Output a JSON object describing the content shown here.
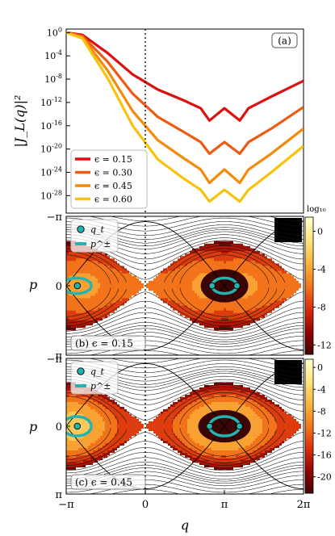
{
  "colors": {
    "eps015": "#dd1010",
    "eps030": "#ee5a14",
    "eps045": "#f58a0a",
    "eps060": "#f8c20c",
    "torus": "#26b3b0",
    "level_min": "#3b0505",
    "level_max": "#ffffc8"
  },
  "chart_data": [
    {
      "type": "line",
      "panel_label": "(a)",
      "ylabel": "|J_L(q)|²",
      "yscale": "log",
      "ylim_exp": [
        -31,
        0.6
      ],
      "xlim": [
        -3.1416,
        6.2832
      ],
      "y_ticks": [
        "10^0",
        "10^-4",
        "10^-8",
        "10^-12",
        "10^-16",
        "10^-20",
        "10^-24",
        "10^-28"
      ],
      "y_tick_exps": [
        0,
        -4,
        -8,
        -12,
        -16,
        -20,
        -24,
        -28
      ],
      "legend_position": "lower-left",
      "dotted_vline_x": 0,
      "series": [
        {
          "name": "ϵ = 0.15",
          "x": [
            -3.14,
            -2.5,
            -1.5,
            -0.5,
            0.5,
            1.5,
            2.2,
            2.55,
            3.14,
            3.75,
            4.1,
            5.0,
            6.28
          ],
          "log10_y": [
            0,
            -0.4,
            -3.5,
            -7.2,
            -9.8,
            -11.6,
            -13.0,
            -15.1,
            -13.0,
            -15.1,
            -13.0,
            -11.0,
            -8.3
          ]
        },
        {
          "name": "ϵ = 0.30",
          "x": [
            -3.14,
            -2.5,
            -1.5,
            -0.5,
            0.5,
            1.5,
            2.2,
            2.55,
            3.14,
            3.75,
            4.1,
            5.0,
            6.28
          ],
          "log10_y": [
            0,
            -0.6,
            -5.0,
            -10.5,
            -14.5,
            -17.0,
            -18.8,
            -20.8,
            -18.8,
            -20.8,
            -18.8,
            -16.5,
            -12.8
          ]
        },
        {
          "name": "ϵ = 0.45",
          "x": [
            -3.14,
            -2.5,
            -1.5,
            -0.5,
            0.5,
            1.5,
            2.2,
            2.55,
            3.14,
            3.75,
            4.1,
            5.0,
            6.28
          ],
          "log10_y": [
            0,
            -0.8,
            -6.5,
            -13.5,
            -18.5,
            -21.5,
            -23.5,
            -25.8,
            -23.5,
            -25.8,
            -23.5,
            -20.8,
            -16.5
          ]
        },
        {
          "name": "ϵ = 0.60",
          "x": [
            -3.14,
            -2.5,
            -1.5,
            -0.5,
            0.5,
            1.5,
            2.2,
            2.55,
            3.14,
            3.75,
            4.1,
            5.0,
            6.28
          ],
          "log10_y": [
            0,
            -1.0,
            -7.8,
            -16.0,
            -21.8,
            -25.0,
            -27.0,
            -29.0,
            -27.0,
            -29.0,
            -27.0,
            -24.0,
            -19.5
          ]
        }
      ]
    },
    {
      "type": "heatmap",
      "panel_label": "(b) ϵ = 0.15",
      "epsilon": 0.15,
      "xlabel": "",
      "ylabel": "p",
      "xlim": [
        -3.1416,
        6.2832
      ],
      "ylim": [
        -3.1416,
        3.1416
      ],
      "y_ticks": [
        "−π",
        "0",
        "π"
      ],
      "colorbar_title": "log₁₀",
      "colorbar_ticks": [
        "0",
        "-4",
        "-8",
        "-12"
      ],
      "colorbar_values": [
        0,
        -4,
        -8,
        -12
      ],
      "colorbar_range": [
        -13,
        1.5
      ],
      "legend": [
        "q_t",
        "p^±"
      ],
      "legend_position": "top-left",
      "markers_q": [
        -2.7,
        2.65,
        3.64
      ],
      "torus_q_range": [
        2.65,
        3.64
      ],
      "torus_p": 0.35
    },
    {
      "type": "heatmap",
      "panel_label": "(c) ϵ = 0.45",
      "epsilon": 0.45,
      "xlabel": "q",
      "ylabel": "p",
      "xlim": [
        -3.1416,
        6.2832
      ],
      "ylim": [
        -3.1416,
        3.1416
      ],
      "x_ticks": [
        "−π",
        "0",
        "π",
        "2π"
      ],
      "y_ticks": [
        "−π",
        "0",
        "π"
      ],
      "colorbar_ticks": [
        "0",
        "-4",
        "-8",
        "-12",
        "-16",
        "-20"
      ],
      "colorbar_values": [
        0,
        -4,
        -8,
        -12,
        -16,
        -20
      ],
      "colorbar_range": [
        -23,
        1.5
      ],
      "legend": [
        "q_t",
        "p^±"
      ],
      "legend_position": "top-left",
      "markers_q": [
        -2.7,
        2.55,
        3.74
      ],
      "torus_q_range": [
        2.55,
        3.74
      ],
      "torus_p": 0.45
    }
  ]
}
